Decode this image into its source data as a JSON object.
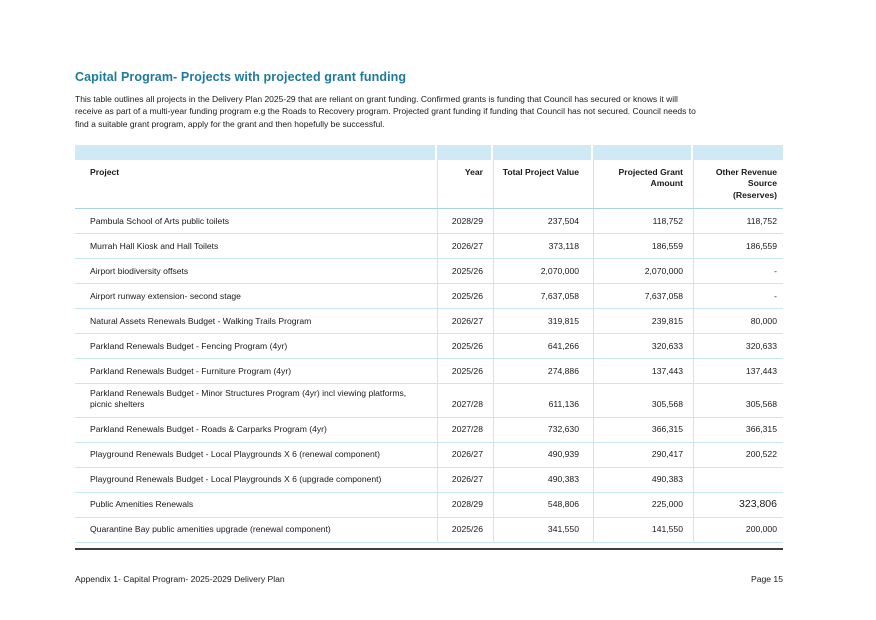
{
  "page": {
    "title": "Capital Program- Projects with projected grant funding",
    "intro_lines": [
      "This table outlines all projects in the Delivery Plan 2025-29 that are reliant on grant funding. Confirmed grants is funding that Council has secured or knows it will",
      "receive as part of a multi-year funding program e.g the Roads to Recovery program. Projected grant funding if funding that Council has not secured. Council needs to",
      "find a suitable grant program, apply for the grant and then hopefully be successful."
    ],
    "footer_left": "Appendix 1- Capital Program- 2025-2029 Delivery Plan",
    "footer_right": "Page 15"
  },
  "colors": {
    "title_teal": "#1e7a9c",
    "band_blue": "#cfe9f5",
    "separator_blue": "#c9e6f3",
    "bottom_rule": "#3d3d3d"
  },
  "table": {
    "field_names": [
      "project",
      "year",
      "total_project_value",
      "projected_grant_amount",
      "other_revenue_source"
    ],
    "columns": [
      {
        "label": "Project"
      },
      {
        "label": "Year"
      },
      {
        "label": "Total Project Value"
      },
      {
        "label": "Projected Grant\nAmount"
      },
      {
        "label": "Other Revenue\nSource\n(Reserves)"
      }
    ],
    "rows": [
      {
        "project": "Pambula School of Arts public toilets",
        "year": "2028/29",
        "total_project_value": "237,504",
        "projected_grant_amount": "118,752",
        "other_revenue_source": "118,752"
      },
      {
        "project": "Murrah Hall Kiosk and Hall Toilets",
        "year": "2026/27",
        "total_project_value": "373,118",
        "projected_grant_amount": "186,559",
        "other_revenue_source": "186,559"
      },
      {
        "project": "Airport biodiversity offsets",
        "year": "2025/26",
        "total_project_value": "2,070,000",
        "projected_grant_amount": "2,070,000",
        "other_revenue_source": "-"
      },
      {
        "project": "Airport runway extension- second stage",
        "year": "2025/26",
        "total_project_value": "7,637,058",
        "projected_grant_amount": "7,637,058",
        "other_revenue_source": "-"
      },
      {
        "project": "Natural Assets Renewals Budget - Walking Trails Program",
        "year": "2026/27",
        "total_project_value": "319,815",
        "projected_grant_amount": "239,815",
        "other_revenue_source": "80,000"
      },
      {
        "project": "Parkland Renewals Budget - Fencing Program (4yr)",
        "year": "2025/26",
        "total_project_value": "641,266",
        "projected_grant_amount": "320,633",
        "other_revenue_source": "320,633"
      },
      {
        "project": "Parkland Renewals Budget - Furniture Program (4yr)",
        "year": "2025/26",
        "total_project_value": "274,886",
        "projected_grant_amount": "137,443",
        "other_revenue_source": "137,443"
      },
      {
        "project": "Parkland Renewals Budget - Minor Structures Program (4yr) incl viewing platforms, picnic shelters",
        "year": "2027/28",
        "total_project_value": "611,136",
        "projected_grant_amount": "305,568",
        "other_revenue_source": "305,568"
      },
      {
        "project": "Parkland Renewals Budget - Roads & Carparks Program (4yr)",
        "year": "2027/28",
        "total_project_value": "732,630",
        "projected_grant_amount": "366,315",
        "other_revenue_source": "366,315"
      },
      {
        "project": "Playground Renewals Budget - Local Playgrounds X 6 (renewal component)",
        "year": "2026/27",
        "total_project_value": "490,939",
        "projected_grant_amount": "290,417",
        "other_revenue_source": "200,522"
      },
      {
        "project": "Playground Renewals Budget - Local Playgrounds X 6 (upgrade component)",
        "year": "2026/27",
        "total_project_value": "490,383",
        "projected_grant_amount": "490,383",
        "other_revenue_source": ""
      },
      {
        "project": "Public Amenities Renewals",
        "year": "2028/29",
        "total_project_value": "548,806",
        "projected_grant_amount": "225,000",
        "other_revenue_source": "323,806",
        "other_revenue_large": true
      },
      {
        "project": "Quarantine Bay public amenities upgrade (renewal component)",
        "year": "2025/26",
        "total_project_value": "341,550",
        "projected_grant_amount": "141,550",
        "other_revenue_source": "200,000"
      }
    ]
  }
}
